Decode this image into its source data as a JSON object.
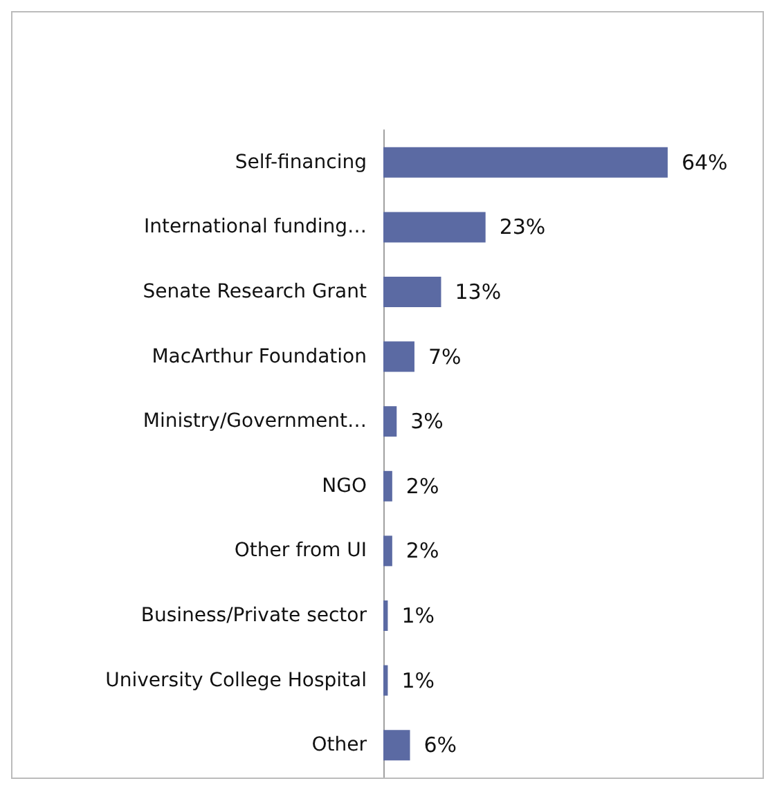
{
  "chart_data": {
    "type": "bar",
    "orientation": "horizontal",
    "categories": [
      "Self-financing",
      "International funding…",
      "Senate Research Grant",
      "MacArthur Foundation",
      "Ministry/Government…",
      "NGO",
      "Other from UI",
      "Business/Private sector",
      "University College Hospital",
      "Other"
    ],
    "values": [
      64,
      23,
      13,
      7,
      3,
      2,
      2,
      1,
      1,
      6
    ],
    "value_labels": [
      "64%",
      "23%",
      "13%",
      "7%",
      "3%",
      "2%",
      "2%",
      "1%",
      "1%",
      "6%"
    ],
    "color": "#5b6aa3"
  }
}
